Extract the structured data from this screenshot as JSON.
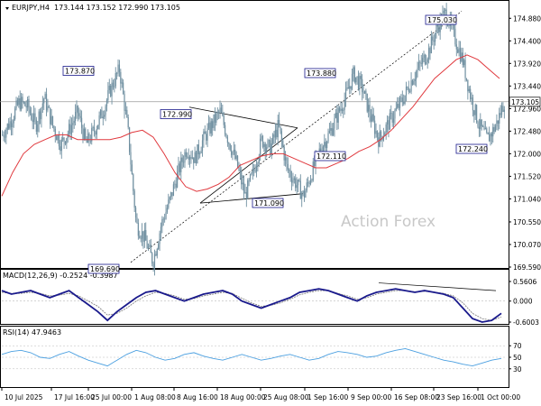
{
  "header": {
    "symbol": "EURJPY,H4",
    "ohlc": "173.144 173.152 172.990 173.105"
  },
  "watermark": "Action Forex",
  "colors": {
    "candle": "#6f8fa0",
    "ma": "#e0393e",
    "macd": "#1a1a8c",
    "rsi": "#4a9fe0",
    "label_border": "#1a1a8c",
    "price_line": "#9a9a9a"
  },
  "chart_data": {
    "type": "candlestick",
    "main": {
      "ylim": [
        169.59,
        175.0
      ],
      "y_ticks": [
        "174.880",
        "174.400",
        "173.920",
        "173.440",
        "172.960",
        "172.480",
        "172.000",
        "171.520",
        "171.040",
        "170.550",
        "170.070",
        "169.590"
      ],
      "current_price": "173.105",
      "close_path": [
        172.4,
        172.7,
        173.1,
        173.0,
        172.6,
        173.2,
        172.6,
        172.2,
        172.5,
        172.9,
        172.2,
        172.5,
        172.9,
        173.4,
        173.8,
        172.5,
        170.5,
        170.2,
        169.7,
        170.5,
        171.0,
        171.6,
        172.1,
        171.9,
        172.3,
        172.6,
        172.9,
        172.3,
        171.8,
        171.1,
        171.6,
        172.3,
        172.1,
        172.6,
        171.7,
        171.4,
        171.1,
        171.6,
        172.1,
        172.4,
        172.8,
        173.2,
        173.7,
        173.4,
        172.8,
        172.3,
        172.6,
        172.9,
        173.2,
        173.6,
        173.9,
        174.2,
        174.7,
        175.0,
        174.5,
        174.0,
        173.2,
        172.6,
        172.3,
        172.6,
        173.1
      ],
      "ma_path": [
        171.1,
        171.6,
        172.0,
        172.2,
        172.3,
        172.4,
        172.4,
        172.3,
        172.3,
        172.3,
        172.3,
        172.35,
        172.45,
        172.5,
        172.35,
        172.0,
        171.6,
        171.3,
        171.2,
        171.25,
        171.35,
        171.5,
        171.75,
        171.85,
        171.95,
        172.0,
        172.0,
        171.9,
        171.8,
        171.7,
        171.7,
        171.8,
        171.9,
        172.05,
        172.15,
        172.3,
        172.5,
        172.75,
        173.0,
        173.3,
        173.6,
        173.8,
        174.0,
        174.1,
        174.0,
        173.8,
        173.6
      ],
      "labels": [
        {
          "text": "173.870"
        },
        {
          "text": "172.990"
        },
        {
          "text": "169.690"
        },
        {
          "text": "171.090"
        },
        {
          "text": "173.880"
        },
        {
          "text": "172.110"
        },
        {
          "text": "175.030"
        },
        {
          "text": "172.240"
        }
      ]
    },
    "macd": {
      "title": "MACD(12,26,9) -0.2524 -0.3987",
      "ylim": [
        -0.6003,
        0.5606
      ],
      "y_ticks": [
        "0.5606",
        "0.000",
        "-0.6003"
      ],
      "main_path": [
        0.3,
        0.2,
        0.25,
        0.3,
        0.2,
        0.1,
        0.2,
        0.3,
        0.1,
        -0.1,
        -0.3,
        -0.55,
        -0.3,
        -0.1,
        0.1,
        0.25,
        0.3,
        0.2,
        0.1,
        0.0,
        0.1,
        0.2,
        0.25,
        0.3,
        0.2,
        0.0,
        -0.1,
        -0.2,
        -0.1,
        0.0,
        0.1,
        0.25,
        0.3,
        0.35,
        0.3,
        0.2,
        0.1,
        0.0,
        0.15,
        0.25,
        0.3,
        0.35,
        0.3,
        0.25,
        0.3,
        0.25,
        0.2,
        0.1,
        -0.2,
        -0.5,
        -0.6,
        -0.55,
        -0.35
      ],
      "signal_path": [
        0.25,
        0.22,
        0.22,
        0.25,
        0.22,
        0.15,
        0.17,
        0.22,
        0.15,
        0.0,
        -0.15,
        -0.4,
        -0.35,
        -0.2,
        0.0,
        0.15,
        0.25,
        0.22,
        0.15,
        0.05,
        0.07,
        0.15,
        0.2,
        0.25,
        0.22,
        0.08,
        -0.05,
        -0.15,
        -0.12,
        -0.05,
        0.05,
        0.18,
        0.25,
        0.3,
        0.3,
        0.22,
        0.15,
        0.05,
        0.1,
        0.2,
        0.25,
        0.3,
        0.3,
        0.27,
        0.28,
        0.26,
        0.22,
        0.15,
        -0.05,
        -0.35,
        -0.5,
        -0.55,
        -0.45
      ]
    },
    "rsi": {
      "title": "RSI(14) 47.9463",
      "ylim": [
        0,
        100
      ],
      "y_ticks": [
        "70",
        "50",
        "30"
      ],
      "path": [
        55,
        60,
        62,
        58,
        50,
        48,
        55,
        60,
        52,
        45,
        40,
        35,
        45,
        55,
        62,
        58,
        50,
        45,
        48,
        55,
        58,
        52,
        48,
        45,
        50,
        55,
        50,
        45,
        48,
        52,
        55,
        50,
        45,
        48,
        55,
        60,
        58,
        55,
        50,
        52,
        58,
        62,
        65,
        60,
        55,
        50,
        45,
        42,
        38,
        35,
        40,
        45,
        48
      ]
    },
    "x_ticks": [
      "10 Jul 2025",
      "17 Jul 16:00",
      "25 Jul 00:00",
      "1 Aug 08:00",
      "8 Aug 16:00",
      "18 Aug 00:00",
      "25 Aug 08:00",
      "1 Sep 16:00",
      "9 Sep 00:00",
      "16 Sep 08:00",
      "23 Sep 16:00",
      "1 Oct 00:00"
    ]
  }
}
